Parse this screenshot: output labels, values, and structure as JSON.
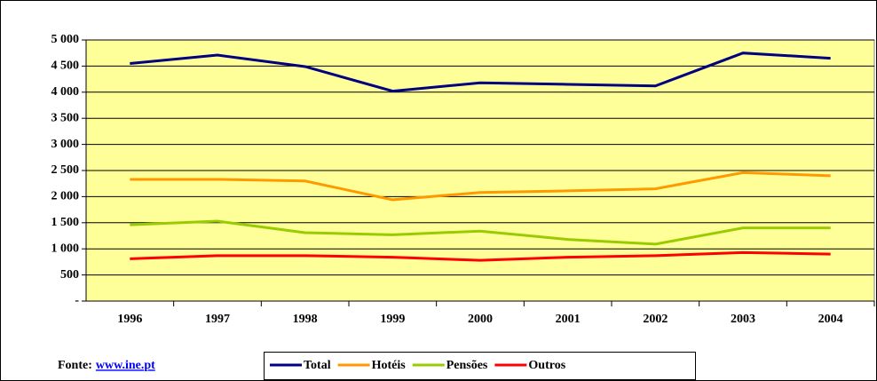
{
  "chart_data": {
    "type": "line",
    "categories": [
      "1996",
      "1997",
      "1998",
      "1999",
      "2000",
      "2001",
      "2002",
      "2003",
      "2004"
    ],
    "series": [
      {
        "name": "Total",
        "color": "#000080",
        "values": [
          4550,
          4710,
          4490,
          4020,
          4180,
          4150,
          4120,
          4750,
          4650
        ]
      },
      {
        "name": "Hotéis",
        "color": "#FF9900",
        "values": [
          2330,
          2330,
          2300,
          1940,
          2080,
          2110,
          2150,
          2460,
          2400
        ]
      },
      {
        "name": "Pensões",
        "color": "#99CC00",
        "values": [
          1460,
          1530,
          1310,
          1270,
          1340,
          1180,
          1090,
          1400,
          1400
        ]
      },
      {
        "name": "Outros",
        "color": "#FF0000",
        "values": [
          810,
          870,
          870,
          840,
          780,
          840,
          870,
          930,
          900
        ]
      }
    ],
    "ylim": [
      0,
      5000
    ],
    "yticks": [
      {
        "value": 0,
        "label": "-"
      },
      500,
      {
        "value": 1000,
        "label": "1 000"
      },
      {
        "value": 1500,
        "label": "1 500"
      },
      {
        "value": 2000,
        "label": "2 000"
      },
      {
        "value": 2500,
        "label": "2 500"
      },
      {
        "value": 3000,
        "label": "3 000"
      },
      {
        "value": 3500,
        "label": "3 500"
      },
      {
        "value": 4000,
        "label": "4 000"
      },
      {
        "value": 4500,
        "label": "4 500"
      },
      {
        "value": 5000,
        "label": "5 000"
      }
    ],
    "grid": true,
    "plot_background": "#FFFF99",
    "legend": "bottom",
    "source": "Fonte:",
    "source_link": "www.ine.pt"
  }
}
